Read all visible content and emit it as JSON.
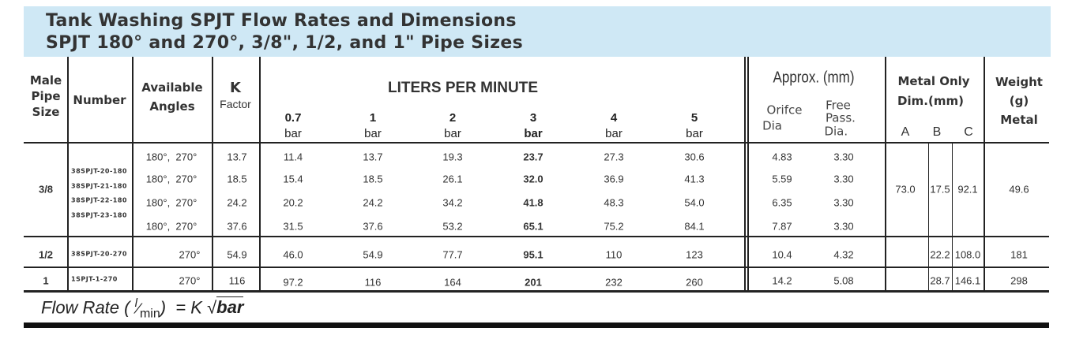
{
  "title": {
    "line1": "Tank Washing SPJT Flow Rates and Dimensions",
    "line2": "SPJT 180° and 270°, 3/8\", 1/2, and 1\" Pipe Sizes"
  },
  "headers": {
    "pipe_size": [
      "Male",
      "Pipe",
      "Size"
    ],
    "number": "Number",
    "angles": [
      "Available",
      "Angles"
    ],
    "k": "K",
    "k_sub": "Factor",
    "lpm": "LITERS PER MINUTE",
    "pressures": [
      "0.7",
      "1",
      "2",
      "3",
      "4",
      "5"
    ],
    "pressure_unit": "bar",
    "approx": "Approx. (mm)",
    "orifice": [
      "Orifce",
      "Dia"
    ],
    "free_pass": [
      "Free",
      "Pass.",
      "Dia."
    ],
    "metal_only": [
      "Metal Only",
      "Dim.(mm)"
    ],
    "dims": [
      "A",
      "B",
      "C"
    ],
    "weight": [
      "Weight",
      "(g)",
      "Metal"
    ]
  },
  "groups": [
    {
      "pipe_size": "3/8",
      "numbers": [
        "38SPJT-20-180",
        "38SPJT-21-180",
        "38SPJT-22-180",
        "38SPJT-23-180"
      ],
      "A": "73.0",
      "B": "17.5",
      "C": "92.1",
      "weight": "49.6"
    },
    {
      "pipe_size": "1/2",
      "numbers": [
        "38SPJT-20-270"
      ],
      "A": "",
      "B": "22.2",
      "C": "108.0",
      "weight": "181"
    },
    {
      "pipe_size": "1",
      "numbers": [
        "1SPJT-1-270"
      ],
      "A": "",
      "B": "28.7",
      "C": "146.1",
      "weight": "298"
    }
  ],
  "rows": [
    {
      "angles": "180°,  270°",
      "k": "13.7",
      "lpm": [
        "11.4",
        "13.7",
        "19.3",
        "23.7",
        "27.3",
        "30.6"
      ],
      "orifice": "4.83",
      "free_pass": "3.30"
    },
    {
      "angles": "180°,  270°",
      "k": "18.5",
      "lpm": [
        "15.4",
        "18.5",
        "26.1",
        "32.0",
        "36.9",
        "41.3"
      ],
      "orifice": "5.59",
      "free_pass": "3.30"
    },
    {
      "angles": "180°,  270°",
      "k": "24.2",
      "lpm": [
        "20.2",
        "24.2",
        "34.2",
        "41.8",
        "48.3",
        "54.0"
      ],
      "orifice": "6.35",
      "free_pass": "3.30"
    },
    {
      "angles": "180°,  270°",
      "k": "37.6",
      "lpm": [
        "31.5",
        "37.6",
        "53.2",
        "65.1",
        "75.2",
        "84.1"
      ],
      "orifice": "7.87",
      "free_pass": "3.30"
    },
    {
      "angles": "270°",
      "k": "54.9",
      "lpm": [
        "46.0",
        "54.9",
        "77.7",
        "95.1",
        "110",
        "123"
      ],
      "orifice": "10.4",
      "free_pass": "4.32"
    },
    {
      "angles": "270°",
      "k": "116",
      "lpm": [
        "97.2",
        "116",
        "164",
        "201",
        "232",
        "260"
      ],
      "orifice": "14.2",
      "free_pass": "5.08"
    }
  ],
  "formula": {
    "prefix": "Flow Rate (",
    "unit_num": "l",
    "unit_den": "min",
    "suffix": ")  = K",
    "root": "√",
    "var": "bar"
  },
  "colors": {
    "header_band": "#cfe8f5",
    "rule": "#222222"
  }
}
